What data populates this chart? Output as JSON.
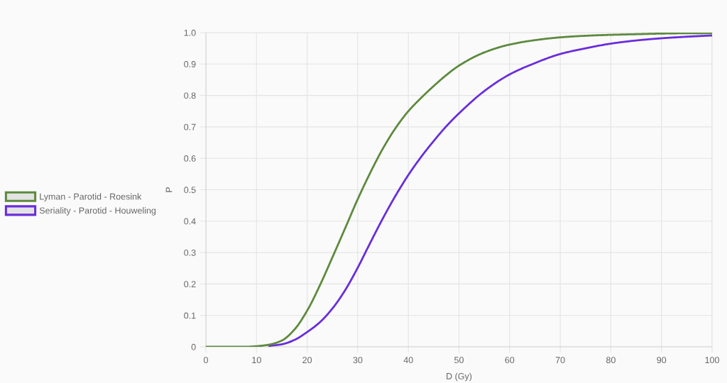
{
  "chart_data": {
    "type": "line",
    "xlabel": "D (Gy)",
    "ylabel": "P",
    "x": [
      0,
      2.5,
      5,
      7.5,
      10,
      12.5,
      15,
      17.5,
      20,
      22.5,
      25,
      27.5,
      30,
      32.5,
      35,
      37.5,
      40,
      42.5,
      45,
      47.5,
      50,
      55,
      60,
      65,
      70,
      75,
      80,
      85,
      90,
      95,
      100
    ],
    "series": [
      {
        "name": "Lyman - Parotid - Roesink",
        "color": "#5e8a3e",
        "values": [
          0,
          0,
          0,
          0,
          0.002,
          0.007,
          0.02,
          0.055,
          0.115,
          0.195,
          0.285,
          0.377,
          0.47,
          0.555,
          0.632,
          0.697,
          0.75,
          0.792,
          0.83,
          0.865,
          0.895,
          0.937,
          0.962,
          0.976,
          0.985,
          0.99,
          0.993,
          0.995,
          0.997,
          0.998,
          0.998
        ]
      },
      {
        "name": "Seriality - Parotid - Houweling",
        "color": "#6a2ddb",
        "values": [
          null,
          null,
          null,
          null,
          null,
          0.003,
          0.008,
          0.022,
          0.047,
          0.078,
          0.122,
          0.18,
          0.252,
          0.332,
          0.41,
          0.482,
          0.547,
          0.604,
          0.655,
          0.702,
          0.743,
          0.814,
          0.867,
          0.903,
          0.932,
          0.95,
          0.965,
          0.975,
          0.982,
          0.987,
          0.991
        ]
      }
    ],
    "xlim": [
      0,
      100
    ],
    "ylim": [
      0,
      1
    ],
    "xticks": [
      0,
      10,
      20,
      30,
      40,
      50,
      60,
      70,
      80,
      90,
      100
    ],
    "yticks": [
      0,
      0.1,
      0.2,
      0.3,
      0.4,
      0.5,
      0.6,
      0.7,
      0.8,
      0.9,
      {
        "value": 1,
        "label": "1.0"
      }
    ],
    "grid": true,
    "legend": "left"
  }
}
